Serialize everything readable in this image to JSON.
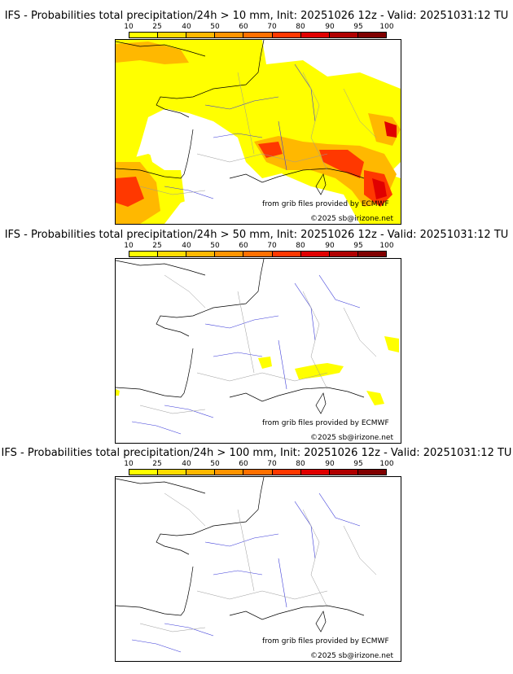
{
  "colorbar": {
    "ticks": [
      "10",
      "25",
      "40",
      "50",
      "60",
      "70",
      "80",
      "90",
      "95",
      "100"
    ],
    "colors": [
      "#ffff00",
      "#ffdc00",
      "#ffb800",
      "#ff9400",
      "#ff7000",
      "#ff3800",
      "#e00000",
      "#b00000",
      "#800000",
      "#500000"
    ]
  },
  "credits": {
    "source": "from grib files provided by ECMWF",
    "copyright": "©2025 sb@irizone.net"
  },
  "panels": [
    {
      "title": "IFS - Probabilities total precipitation/24h > 10 mm, Init: 20251026 12z - Valid: 20251031:12 TU"
    },
    {
      "title": "IFS - Probabilities total precipitation/24h > 50 mm, Init: 20251026 12z - Valid: 20251031:12 TU"
    },
    {
      "title": "IFS - Probabilities total precipitation/24h > 100 mm, Init: 20251026 12z - Valid: 20251031:12 TU"
    }
  ]
}
